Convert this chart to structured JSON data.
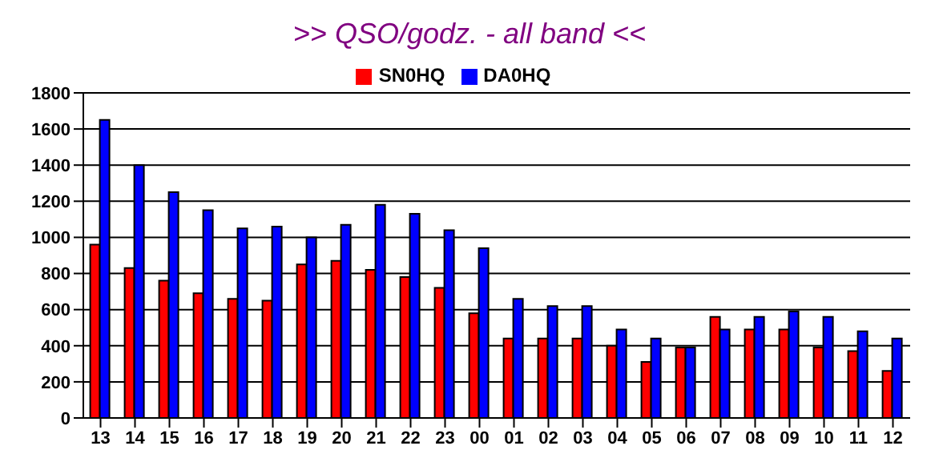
{
  "chart_data": {
    "type": "bar",
    "title": ">> QSO/godz. - all band <<",
    "categories": [
      "13",
      "14",
      "15",
      "16",
      "17",
      "18",
      "19",
      "20",
      "21",
      "22",
      "23",
      "00",
      "01",
      "02",
      "03",
      "04",
      "05",
      "06",
      "07",
      "08",
      "09",
      "10",
      "11",
      "12"
    ],
    "series": [
      {
        "name": "SN0HQ",
        "color": "#ff0000",
        "values": [
          960,
          830,
          760,
          690,
          660,
          650,
          850,
          870,
          820,
          780,
          720,
          580,
          440,
          440,
          440,
          400,
          310,
          390,
          560,
          490,
          490,
          390,
          370,
          260
        ]
      },
      {
        "name": "DA0HQ",
        "color": "#0000ff",
        "values": [
          1650,
          1400,
          1250,
          1150,
          1050,
          1060,
          1000,
          1070,
          1180,
          1130,
          1040,
          940,
          660,
          620,
          620,
          490,
          440,
          390,
          490,
          560,
          590,
          560,
          480,
          440
        ]
      }
    ],
    "ylim": [
      0,
      1800
    ],
    "yticks": [
      0,
      200,
      400,
      600,
      800,
      1000,
      1200,
      1400,
      1600,
      1800
    ],
    "grid": "y",
    "legend": "top"
  }
}
